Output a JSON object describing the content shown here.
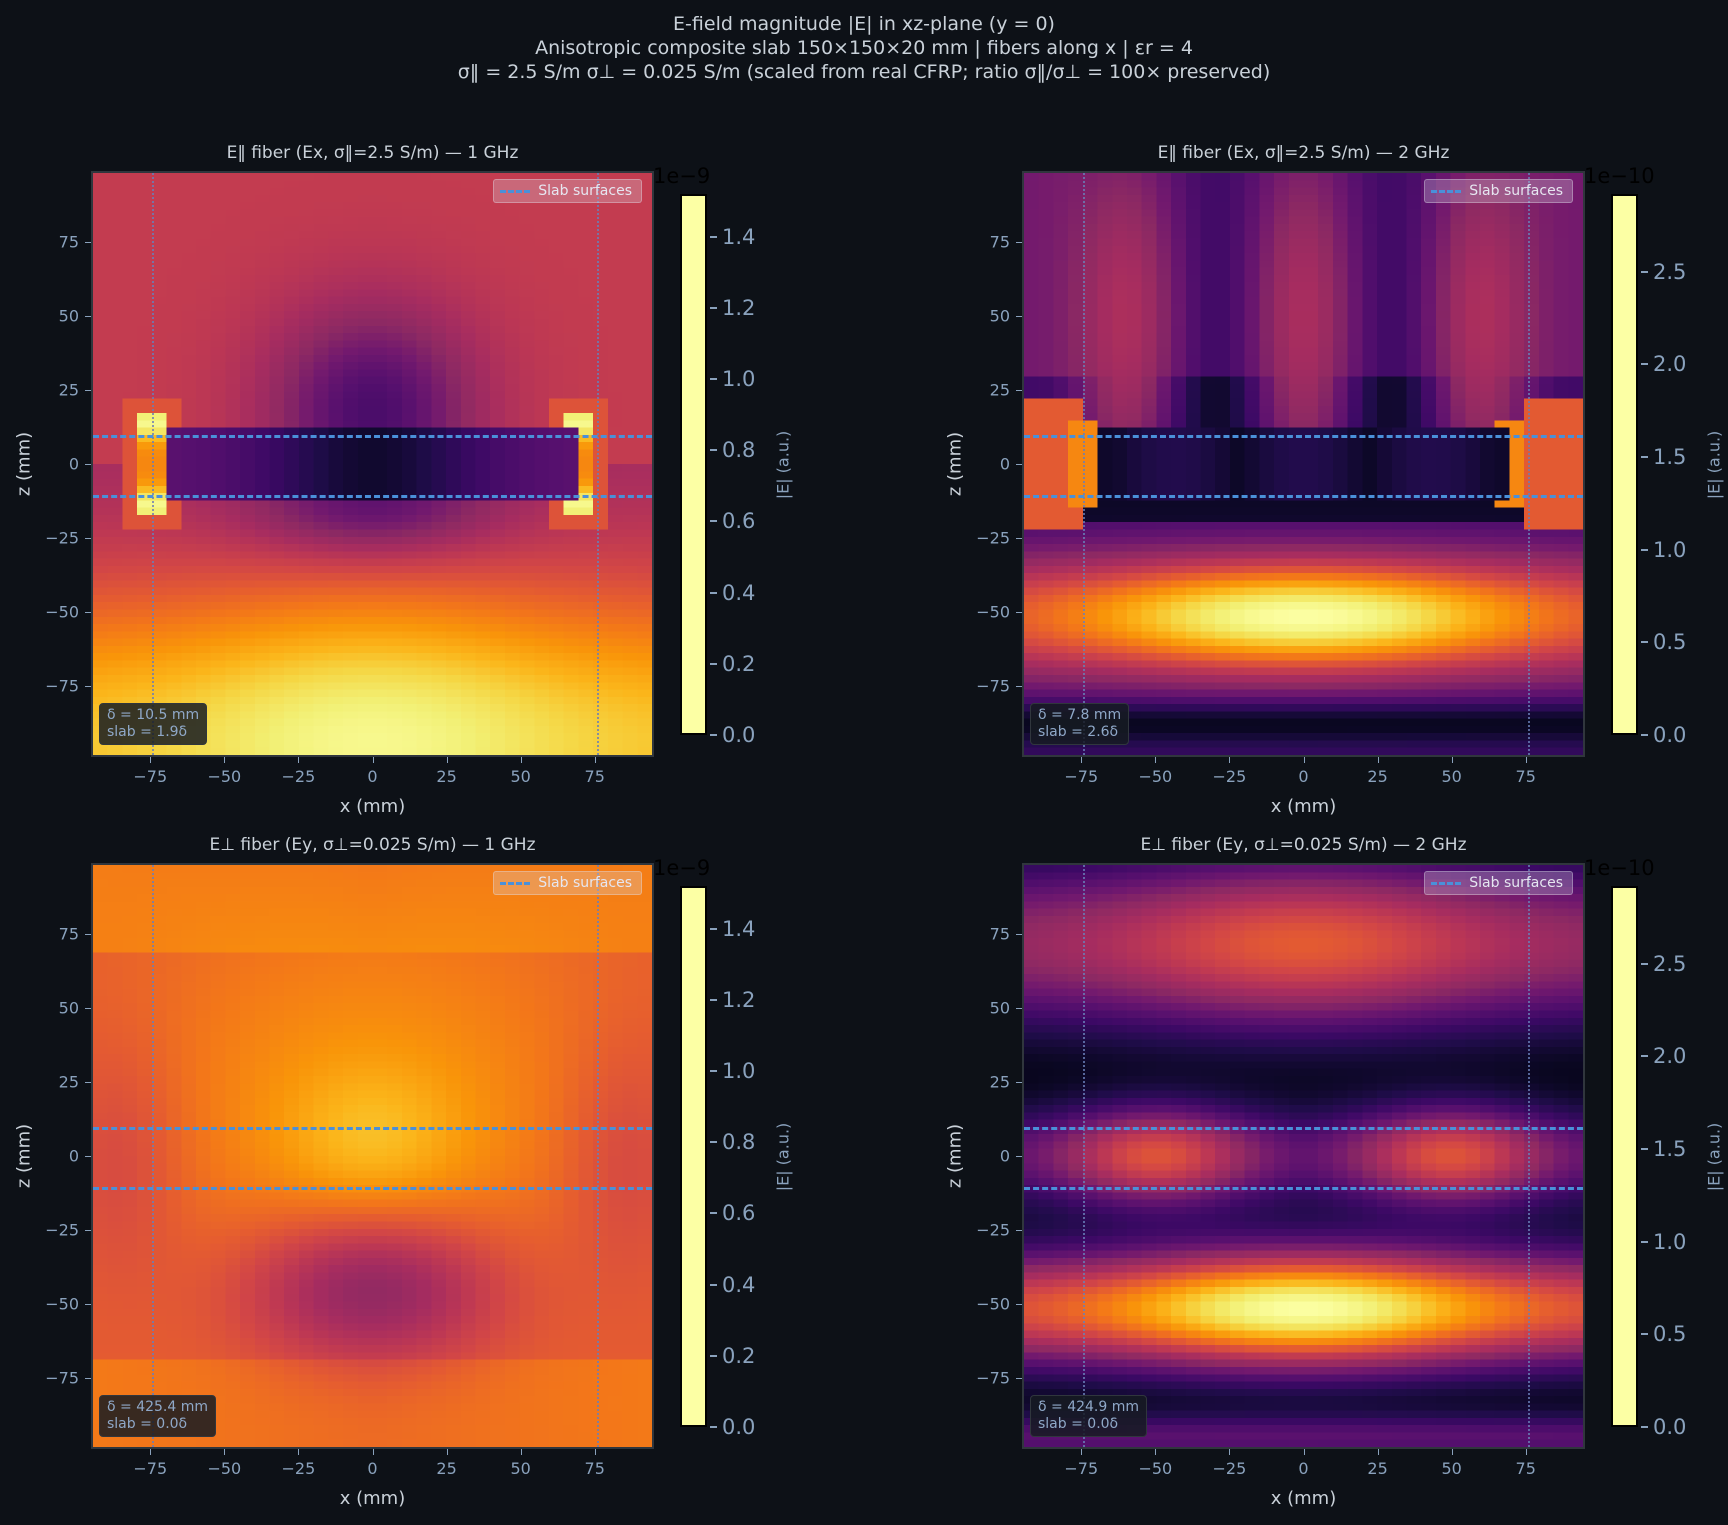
{
  "figure": {
    "title_lines": [
      "E-field magnitude  |E|  in xz-plane (y = 0)",
      "Anisotropic composite slab 150×150×20 mm  |  fibers along x  |  εr = 4",
      "σ‖ = 2.5 S/m   σ⊥ = 0.025 S/m   (scaled from real CFRP; ratio σ‖/σ⊥ = 100× preserved)"
    ],
    "background": "#0d1117",
    "slab_line_color": "#4a90d9",
    "colormap": "inferno"
  },
  "axes_common": {
    "xlabel": "x (mm)",
    "ylabel": "z (mm)",
    "xticks": [
      "−75",
      "−50",
      "−25",
      "0",
      "25",
      "50",
      "75"
    ],
    "xtick_values": [
      -75,
      -50,
      -25,
      0,
      25,
      50,
      75
    ],
    "yticks": [
      "75",
      "50",
      "25",
      "0",
      "−25",
      "−50",
      "−75"
    ],
    "ytick_values": [
      75,
      50,
      25,
      0,
      -25,
      -50,
      -75
    ],
    "xlim": [
      -95,
      95
    ],
    "zlim": [
      -99,
      99
    ],
    "legend_label": "Slab surfaces",
    "colorbar_label": "|E| (a.u.)"
  },
  "panels": [
    {
      "title": "E‖ fiber  (Ex,  σ‖=2.5 S/m)  —  1 GHz",
      "annotation": "δ = 10.5 mm\nslab = 1.9δ",
      "colorbar": {
        "offset": "1e−9",
        "ticks": [
          "0.0",
          "0.2",
          "0.4",
          "0.6",
          "0.8",
          "1.0",
          "1.2",
          "1.4"
        ],
        "tick_values": [
          0,
          0.2,
          0.4,
          0.6,
          0.8,
          1.0,
          1.2,
          1.4
        ],
        "max": 1.52
      },
      "model": "par1"
    },
    {
      "title": "E‖ fiber  (Ex,  σ‖=2.5 S/m)  —  2 GHz",
      "annotation": "δ = 7.8 mm\nslab = 2.6δ",
      "colorbar": {
        "offset": "1e−10",
        "ticks": [
          "0.0",
          "0.5",
          "1.0",
          "1.5",
          "2.0",
          "2.5"
        ],
        "tick_values": [
          0,
          0.5,
          1.0,
          1.5,
          2.0,
          2.5
        ],
        "max": 2.92
      },
      "model": "par2"
    },
    {
      "title": "E⊥ fiber  (Ey,  σ⊥=0.025 S/m)  —  1 GHz",
      "annotation": "δ = 425.4 mm\nslab = 0.0δ",
      "colorbar": {
        "offset": "1e−9",
        "ticks": [
          "0.0",
          "0.2",
          "0.4",
          "0.6",
          "0.8",
          "1.0",
          "1.2",
          "1.4"
        ],
        "tick_values": [
          0,
          0.2,
          0.4,
          0.6,
          0.8,
          1.0,
          1.2,
          1.4
        ],
        "max": 1.52
      },
      "model": "perp1"
    },
    {
      "title": "E⊥ fiber  (Ey,  σ⊥=0.025 S/m)  —  2 GHz",
      "annotation": "δ = 424.9 mm\nslab = 0.0δ",
      "colorbar": {
        "offset": "1e−10",
        "ticks": [
          "0.0",
          "0.5",
          "1.0",
          "1.5",
          "2.0",
          "2.5"
        ],
        "tick_values": [
          0,
          0.5,
          1.0,
          1.5,
          2.0,
          2.5
        ],
        "max": 2.92
      },
      "model": "perp2"
    }
  ],
  "chart_data": [
    {
      "type": "heatmap",
      "title": "E‖ fiber  (Ex,  σ‖=2.5 S/m)  —  1 GHz",
      "xlabel": "x (mm)",
      "ylabel": "z (mm)",
      "xlim": [
        -95,
        95
      ],
      "ylim": [
        -99,
        99
      ],
      "colorbar_label": "|E| (a.u.)",
      "colorbar_range": [
        0,
        1.52e-09
      ],
      "colorbar_scale": "1e-9",
      "slab_surfaces_z": [
        -10,
        10
      ],
      "slab_edges_x": [
        -75,
        75
      ],
      "legend": [
        "Slab surfaces"
      ],
      "annotation": [
        "δ = 10.5 mm",
        "slab = 1.9δ"
      ],
      "features": {
        "peak_region": "z≈-85 near x=0 (~1.5e-9)",
        "slab_interior": "~0.05–0.3e-9",
        "edge_hotspots_x": [
          -75,
          72
        ],
        "top_region": "~0.75e-9"
      }
    },
    {
      "type": "heatmap",
      "title": "E‖ fiber  (Ex,  σ‖=2.5 S/m)  —  2 GHz",
      "xlabel": "x (mm)",
      "ylabel": "z (mm)",
      "xlim": [
        -95,
        95
      ],
      "ylim": [
        -99,
        99
      ],
      "colorbar_label": "|E| (a.u.)",
      "colorbar_range": [
        0,
        2.92e-10
      ],
      "colorbar_scale": "1e-10",
      "slab_surfaces_z": [
        -10,
        10
      ],
      "slab_edges_x": [
        -75,
        75
      ],
      "legend": [
        "Slab surfaces"
      ],
      "annotation": [
        "δ = 7.8 mm",
        "slab = 2.6δ"
      ],
      "features": {
        "peak_region": "z≈-52 near x=0 (~2.9e-10)",
        "slab_interior": "~0.1e-10",
        "edge_hotspots_x": [
          -75,
          72
        ]
      }
    },
    {
      "type": "heatmap",
      "title": "E⊥ fiber  (Ey,  σ⊥=0.025 S/m)  —  1 GHz",
      "xlabel": "x (mm)",
      "ylabel": "z (mm)",
      "xlim": [
        -95,
        95
      ],
      "ylim": [
        -99,
        99
      ],
      "colorbar_label": "|E| (a.u.)",
      "colorbar_range": [
        0,
        1.52e-09
      ],
      "colorbar_scale": "1e-9",
      "slab_surfaces_z": [
        -10,
        10
      ],
      "legend": [
        "Slab surfaces"
      ],
      "annotation": [
        "δ = 425.4 mm",
        "slab = 0.0δ"
      ],
      "features": {
        "max_region": "z≈5 near x=0 (~1.15e-9)",
        "min_region": "z≈-45 near x=0 (~0.55e-9)",
        "background": "~0.9–1.1e-9"
      }
    },
    {
      "type": "heatmap",
      "title": "E⊥ fiber  (Ey,  σ⊥=0.025 S/m)  —  2 GHz",
      "xlabel": "x (mm)",
      "ylabel": "z (mm)",
      "xlim": [
        -95,
        95
      ],
      "ylim": [
        -99,
        99
      ],
      "colorbar_label": "|E| (a.u.)",
      "colorbar_range": [
        0,
        2.92e-10
      ],
      "colorbar_scale": "1e-10",
      "slab_surfaces_z": [
        -10,
        10
      ],
      "legend": [
        "Slab surfaces"
      ],
      "annotation": [
        "δ = 424.9 mm",
        "slab = 0.0δ"
      ],
      "features": {
        "peak_region": "z≈-52 near x=0 (~2.9e-10)",
        "upper_lobe": "z≈72 (~2.1e-10)",
        "mid_lobes": "z≈0 at x≈±50 (~1.8e-10)",
        "nulls_z": [
          35,
          -15,
          -90
        ]
      }
    }
  ]
}
